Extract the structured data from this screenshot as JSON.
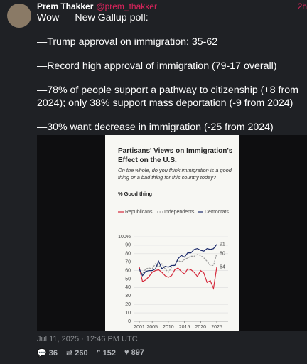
{
  "tweet": {
    "author": "Prem Thakker",
    "handle": "@prem_thakker",
    "time": "2h",
    "text": [
      "Wow — New Gallup poll:",
      "—Trump approval on immigration: 35-62",
      "—Record high approval of immigration (79-17 overall)",
      "—78% of people support a pathway to citizenship (+8 from 2024); only 38% support mass deportation (-9 from 2024)",
      "—30% want decrease in immigration (-25 from 2024)"
    ],
    "date": "Jul 11, 2025 · 12:46 PM UTC",
    "stats": {
      "replies": 36,
      "retweets": 260,
      "quotes": 152,
      "likes": 897
    }
  },
  "chart_data": {
    "type": "line",
    "title": "Partisans' Views on Immigration's Effect on the U.S.",
    "subtitle": "On the whole, do you think immigration is a good thing or a bad thing for this country today?",
    "ylabel": "% Good thing",
    "x": [
      2001,
      2002,
      2003,
      2004,
      2005,
      2006,
      2007,
      2008,
      2009,
      2010,
      2011,
      2012,
      2013,
      2014,
      2015,
      2016,
      2017,
      2018,
      2019,
      2020,
      2021,
      2022,
      2023,
      2024,
      2025
    ],
    "series": [
      {
        "name": "Republicans",
        "color": "#d4283a",
        "dash": false,
        "values": [
          64,
          47,
          49,
          53,
          58,
          60,
          61,
          58,
          54,
          52,
          54,
          61,
          63,
          59,
          56,
          62,
          61,
          58,
          53,
          60,
          57,
          46,
          48,
          39,
          64
        ]
      },
      {
        "name": "Independents",
        "color": "#9a9a9a",
        "dash": true,
        "values": [
          60,
          56,
          62,
          63,
          62,
          68,
          64,
          68,
          62,
          58,
          64,
          67,
          72,
          70,
          73,
          75,
          77,
          77,
          79,
          78,
          75,
          71,
          66,
          66,
          80
        ]
      },
      {
        "name": "Democrats",
        "color": "#1b2a6b",
        "dash": false,
        "values": [
          62,
          54,
          59,
          60,
          60,
          62,
          71,
          62,
          65,
          64,
          66,
          66,
          74,
          78,
          76,
          81,
          81,
          85,
          86,
          84,
          83,
          86,
          85,
          86,
          91
        ]
      }
    ],
    "xlim": [
      2001,
      2025
    ],
    "xticks": [
      2001,
      2005,
      2010,
      2015,
      2020,
      2025
    ],
    "ylim": [
      0,
      100
    ],
    "yticks": [
      0,
      10,
      20,
      30,
      40,
      50,
      60,
      70,
      80,
      90,
      {
        "value": 100,
        "label": "100%"
      }
    ],
    "grid": true
  }
}
